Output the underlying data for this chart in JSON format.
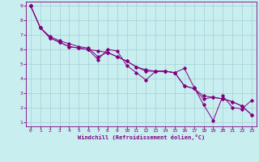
{
  "title": "",
  "xlabel": "Windchill (Refroidissement éolien,°C)",
  "ylabel": "",
  "bg_color": "#c8eef0",
  "line_color": "#800080",
  "marker_color": "#800080",
  "grid_color": "#aad4d8",
  "axis_color": "#800080",
  "tick_color": "#800080",
  "xlim": [
    -0.5,
    23.5
  ],
  "ylim": [
    0.7,
    9.3
  ],
  "yticks": [
    1,
    2,
    3,
    4,
    5,
    6,
    7,
    8,
    9
  ],
  "xticks": [
    0,
    1,
    2,
    3,
    4,
    5,
    6,
    7,
    8,
    9,
    10,
    11,
    12,
    13,
    14,
    15,
    16,
    17,
    18,
    19,
    20,
    21,
    22,
    23
  ],
  "series1_x": [
    0,
    1,
    2,
    3,
    4,
    5,
    6,
    7,
    8,
    9,
    10,
    11,
    12,
    13,
    14,
    15,
    16,
    17,
    18,
    19,
    20,
    21,
    22,
    23
  ],
  "series1_y": [
    9.0,
    7.5,
    6.8,
    6.5,
    6.2,
    6.1,
    6.0,
    5.3,
    6.0,
    5.9,
    4.9,
    4.4,
    3.9,
    4.5,
    4.5,
    4.4,
    4.7,
    3.4,
    2.2,
    1.1,
    2.8,
    2.0,
    1.9,
    2.5
  ],
  "series2_x": [
    0,
    1,
    2,
    3,
    4,
    5,
    6,
    7,
    8,
    9,
    10,
    11,
    12,
    13,
    14,
    15,
    16,
    17,
    18,
    19,
    20,
    21,
    22,
    23
  ],
  "series2_y": [
    9.0,
    7.5,
    6.8,
    6.5,
    6.2,
    6.1,
    6.0,
    5.9,
    5.8,
    5.5,
    5.2,
    4.8,
    4.6,
    4.5,
    4.5,
    4.4,
    3.5,
    3.3,
    2.8,
    2.7,
    2.6,
    2.4,
    2.1,
    1.5
  ],
  "series3_x": [
    0,
    1,
    2,
    3,
    4,
    5,
    6,
    7,
    8,
    9,
    10,
    11,
    12,
    13,
    14,
    15,
    16,
    17,
    18,
    19,
    20,
    21,
    22,
    23
  ],
  "series3_y": [
    9.0,
    7.5,
    6.9,
    6.6,
    6.4,
    6.2,
    6.1,
    5.5,
    5.8,
    5.5,
    5.2,
    4.8,
    4.5,
    4.5,
    4.5,
    4.4,
    3.5,
    3.3,
    2.6,
    2.7,
    2.6,
    2.4,
    2.1,
    1.5
  ]
}
